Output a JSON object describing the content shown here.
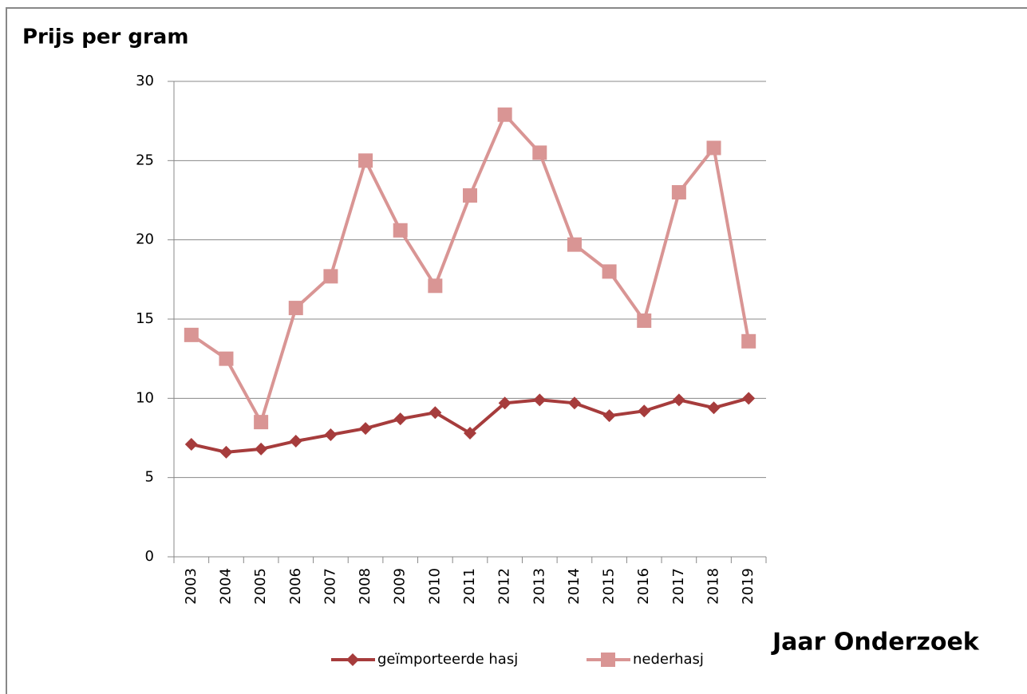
{
  "chart_data": {
    "type": "line",
    "title": "Prijs per gram",
    "x_label": "Jaar Onderzoek",
    "categories": [
      "2003",
      "2004",
      "2005",
      "2006",
      "2007",
      "2008",
      "2009",
      "2010",
      "2011",
      "2012",
      "2013",
      "2014",
      "2015",
      "2016",
      "2017",
      "2018",
      "2019"
    ],
    "series": [
      {
        "name": "geïmporteerde hasj",
        "color": "#a63c3c",
        "marker": "diamond",
        "values": [
          7.1,
          6.6,
          6.8,
          7.3,
          7.7,
          8.1,
          8.7,
          9.1,
          7.8,
          9.7,
          9.9,
          9.7,
          8.9,
          9.2,
          9.9,
          9.4,
          10.0
        ]
      },
      {
        "name": "nederhasj",
        "color": "#d99594",
        "marker": "square",
        "values": [
          14.0,
          12.5,
          8.5,
          15.7,
          17.7,
          25.0,
          20.6,
          17.1,
          22.8,
          27.9,
          25.5,
          19.7,
          18.0,
          14.9,
          23.0,
          25.8,
          13.6
        ]
      }
    ],
    "ylim": [
      0,
      30
    ],
    "yticks": [
      0,
      5,
      10,
      15,
      20,
      25,
      30
    ],
    "grid": true,
    "legend": "bottom"
  }
}
